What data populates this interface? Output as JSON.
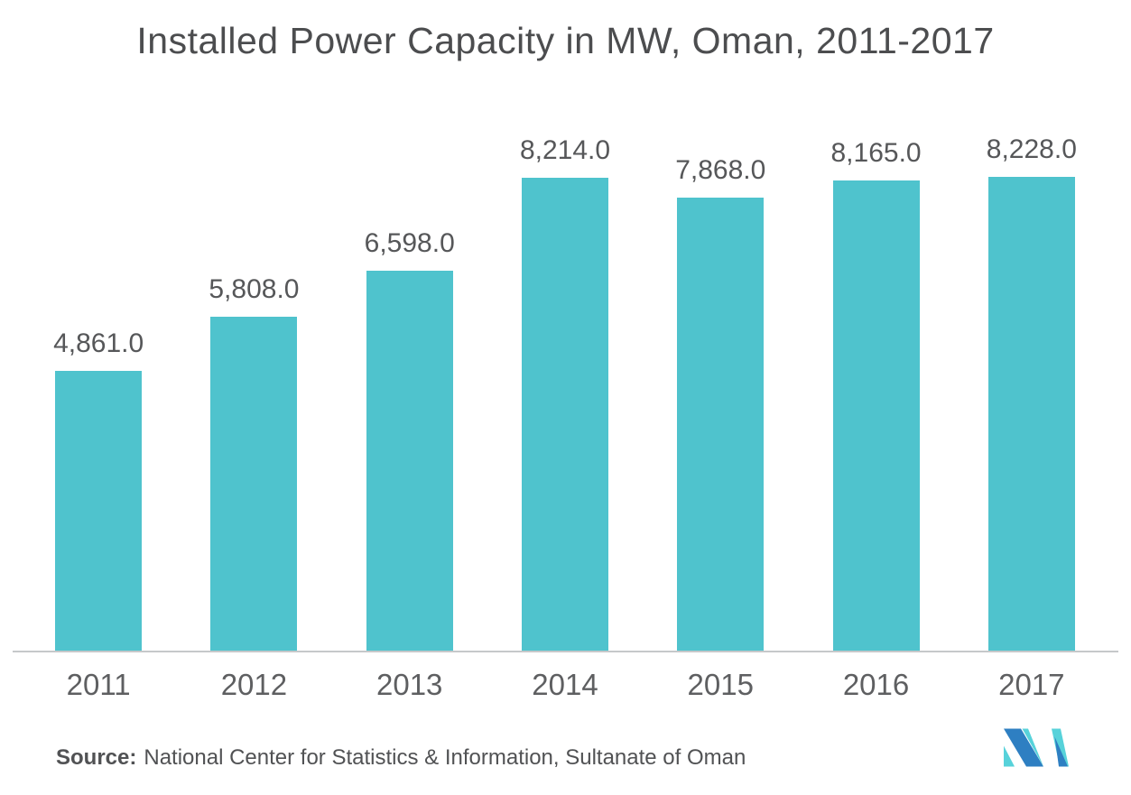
{
  "title": "Installed Power Capacity in MW, Oman, 2011-2017",
  "chart_data": {
    "type": "bar",
    "title": "Installed Power Capacity in MW, Oman, 2011-2017",
    "categories": [
      "2011",
      "2012",
      "2013",
      "2014",
      "2015",
      "2016",
      "2017"
    ],
    "values": [
      4861.0,
      5808.0,
      6598.0,
      8214.0,
      7868.0,
      8165.0,
      8228.0
    ],
    "data_labels": [
      "4,861.0",
      "5,808.0",
      "6,598.0",
      "8,214.0",
      "7,868.0",
      "8,165.0",
      "8,228.0"
    ],
    "xlabel": "",
    "ylabel": "",
    "unit": "MW",
    "ylim": [
      0,
      8228
    ],
    "grid": false,
    "legend": false,
    "bar_color": "#4fc3cd",
    "value_label_color": "#565759",
    "axis_label_color": "#5e5f61",
    "axis_line_color": "#c6c8ca"
  },
  "source": {
    "prefix": "Source:",
    "text": "National Center for Statistics & Information, Sultanate of Oman"
  },
  "logo": {
    "name": "mordor-intelligence-logo",
    "teal": "#57d2da",
    "blue": "#2e7fc2"
  },
  "colors": {
    "background": "#ffffff",
    "title": "#4c4d4f"
  }
}
